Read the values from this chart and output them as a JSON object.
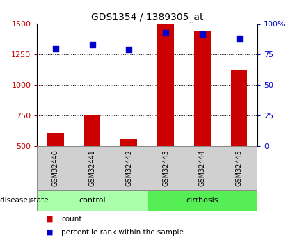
{
  "title": "GDS1354 / 1389305_at",
  "categories": [
    "GSM32440",
    "GSM32441",
    "GSM32442",
    "GSM32443",
    "GSM32444",
    "GSM32445"
  ],
  "bar_values": [
    610,
    750,
    560,
    1500,
    1440,
    1120
  ],
  "percentile_values": [
    80,
    83,
    79,
    93,
    92,
    88
  ],
  "bar_color": "#cc0000",
  "dot_color": "#0000cc",
  "ylim_left": [
    500,
    1500
  ],
  "ylim_right": [
    0,
    100
  ],
  "yticks_left": [
    500,
    750,
    1000,
    1250,
    1500
  ],
  "yticks_right": [
    0,
    25,
    50,
    75,
    100
  ],
  "ytick_labels_right": [
    "0",
    "25",
    "50",
    "75",
    "100%"
  ],
  "groups": [
    {
      "label": "control",
      "indices": [
        0,
        1,
        2
      ],
      "color": "#aaffaa"
    },
    {
      "label": "cirrhosis",
      "indices": [
        3,
        4,
        5
      ],
      "color": "#55ee55"
    }
  ],
  "disease_state_label": "disease state",
  "legend_items": [
    {
      "label": "count",
      "color": "#cc0000"
    },
    {
      "label": "percentile rank within the sample",
      "color": "#0000cc"
    }
  ],
  "bar_width": 0.45,
  "background_color": "#ffffff",
  "tick_label_fontsize": 8,
  "title_fontsize": 10,
  "cat_label_fontsize": 7,
  "group_label_fontsize": 8,
  "legend_fontsize": 7.5
}
